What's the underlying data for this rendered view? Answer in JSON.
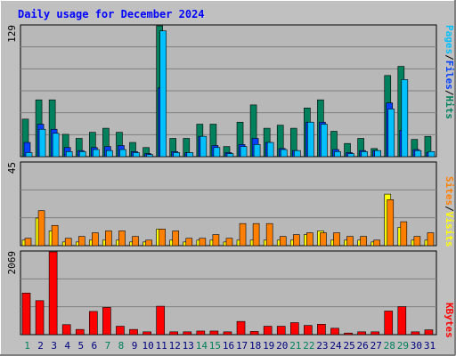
{
  "title": "Daily usage for December 2024",
  "colors": {
    "background": "#c0c0c0",
    "plot_bg": "#b8b8b8",
    "grid": "#808080",
    "title": "#0000ff",
    "hits": "#00805c",
    "files": "#0040ff",
    "pages": "#00c0ff",
    "visits": "#ffff00",
    "sites": "#ff8000",
    "kbytes": "#ff0000",
    "weekend_day": "#00805c",
    "weekday_day": "#000080"
  },
  "chart_data": [
    {
      "type": "bar",
      "title": "Daily usage for December 2024",
      "ymax_label": "129",
      "ylim": [
        0,
        129
      ],
      "grid": true,
      "legend": "right",
      "categories": [
        "1",
        "2",
        "3",
        "4",
        "5",
        "6",
        "7",
        "8",
        "9",
        "10",
        "11",
        "12",
        "13",
        "14",
        "15",
        "16",
        "17",
        "18",
        "19",
        "20",
        "21",
        "22",
        "23",
        "24",
        "25",
        "26",
        "27",
        "28",
        "29",
        "30",
        "31"
      ],
      "series": [
        {
          "name": "Hits",
          "color": "#00805c",
          "values": [
            37,
            56,
            56,
            22,
            18,
            24,
            28,
            24,
            14,
            9,
            129,
            18,
            18,
            32,
            32,
            10,
            34,
            51,
            28,
            31,
            28,
            48,
            56,
            25,
            13,
            18,
            8,
            80,
            89,
            17,
            20
          ]
        },
        {
          "name": "Files",
          "color": "#0040ff",
          "values": [
            14,
            32,
            27,
            9,
            6,
            9,
            10,
            11,
            5,
            3,
            68,
            5,
            4,
            20,
            11,
            4,
            12,
            18,
            14,
            8,
            6,
            34,
            34,
            7,
            4,
            6,
            6,
            53,
            26,
            7,
            4
          ]
        },
        {
          "name": "Pages",
          "color": "#00c0ff",
          "values": [
            4,
            27,
            23,
            5,
            5,
            7,
            6,
            7,
            4,
            2,
            124,
            4,
            4,
            20,
            9,
            3,
            10,
            12,
            14,
            7,
            6,
            34,
            32,
            5,
            3,
            5,
            6,
            47,
            76,
            6,
            5
          ]
        }
      ]
    },
    {
      "type": "bar",
      "ymax_label": "45",
      "ylim": [
        0,
        45
      ],
      "grid": true,
      "legend": "right",
      "categories": [
        "1",
        "2",
        "3",
        "4",
        "5",
        "6",
        "7",
        "8",
        "9",
        "10",
        "11",
        "12",
        "13",
        "14",
        "15",
        "16",
        "17",
        "18",
        "19",
        "20",
        "21",
        "22",
        "23",
        "24",
        "25",
        "26",
        "27",
        "28",
        "29",
        "30",
        "31"
      ],
      "series": [
        {
          "name": "Visits",
          "color": "#ffff00",
          "values": [
            3,
            15,
            8,
            2,
            2,
            3,
            3,
            3,
            2,
            2,
            9,
            3,
            2,
            3,
            3,
            2,
            3,
            3,
            3,
            3,
            3,
            6,
            8,
            3,
            3,
            3,
            2,
            28,
            10,
            3,
            3
          ]
        },
        {
          "name": "Sites",
          "color": "#ff8000",
          "values": [
            4,
            19,
            11,
            4,
            5,
            7,
            8,
            8,
            5,
            3,
            9,
            8,
            4,
            4,
            6,
            4,
            12,
            12,
            12,
            5,
            6,
            7,
            7,
            7,
            5,
            5,
            3,
            25,
            13,
            5,
            7
          ]
        }
      ]
    },
    {
      "type": "bar",
      "ymax_label": "2069",
      "ylim": [
        0,
        2069
      ],
      "grid": true,
      "legend": "right",
      "categories": [
        "1",
        "2",
        "3",
        "4",
        "5",
        "6",
        "7",
        "8",
        "9",
        "10",
        "11",
        "12",
        "13",
        "14",
        "15",
        "16",
        "17",
        "18",
        "19",
        "20",
        "21",
        "22",
        "23",
        "24",
        "25",
        "26",
        "27",
        "28",
        "29",
        "30",
        "31"
      ],
      "series": [
        {
          "name": "KBytes",
          "color": "#ff0000",
          "values": [
            1040,
            850,
            2069,
            250,
            130,
            580,
            680,
            210,
            130,
            70,
            710,
            70,
            70,
            90,
            90,
            70,
            330,
            80,
            210,
            210,
            300,
            230,
            260,
            160,
            40,
            70,
            70,
            590,
            700,
            70,
            120
          ]
        }
      ]
    }
  ],
  "legend_top": {
    "hits": "Hits",
    "files": "Files",
    "pages": "Pages",
    "sep1": "/",
    "sep2": "/"
  },
  "legend_mid": {
    "visits": "Visits",
    "sites": "Sites",
    "sep": "/"
  },
  "legend_bot": {
    "kbytes": "KBytes"
  },
  "days": [
    {
      "label": "1",
      "weekend": true
    },
    {
      "label": "2",
      "weekend": false
    },
    {
      "label": "3",
      "weekend": false
    },
    {
      "label": "4",
      "weekend": false
    },
    {
      "label": "5",
      "weekend": false
    },
    {
      "label": "6",
      "weekend": false
    },
    {
      "label": "7",
      "weekend": true
    },
    {
      "label": "8",
      "weekend": true
    },
    {
      "label": "9",
      "weekend": false
    },
    {
      "label": "10",
      "weekend": false
    },
    {
      "label": "11",
      "weekend": false
    },
    {
      "label": "12",
      "weekend": false
    },
    {
      "label": "13",
      "weekend": false
    },
    {
      "label": "14",
      "weekend": true
    },
    {
      "label": "15",
      "weekend": true
    },
    {
      "label": "16",
      "weekend": false
    },
    {
      "label": "17",
      "weekend": false
    },
    {
      "label": "18",
      "weekend": false
    },
    {
      "label": "19",
      "weekend": false
    },
    {
      "label": "20",
      "weekend": false
    },
    {
      "label": "21",
      "weekend": true
    },
    {
      "label": "22",
      "weekend": true
    },
    {
      "label": "23",
      "weekend": false
    },
    {
      "label": "24",
      "weekend": false
    },
    {
      "label": "25",
      "weekend": false
    },
    {
      "label": "26",
      "weekend": false
    },
    {
      "label": "27",
      "weekend": false
    },
    {
      "label": "28",
      "weekend": true
    },
    {
      "label": "29",
      "weekend": true
    },
    {
      "label": "30",
      "weekend": false
    },
    {
      "label": "31",
      "weekend": false
    }
  ]
}
